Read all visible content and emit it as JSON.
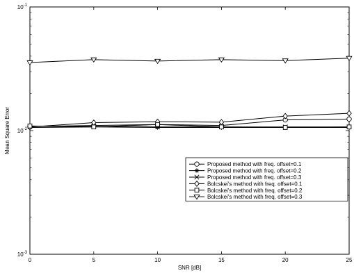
{
  "chart_data": {
    "type": "line",
    "xlabel": "SNR [dB]",
    "ylabel": "Mean Square Error",
    "xlim": [
      0,
      25
    ],
    "ylim": [
      0.001,
      0.1
    ],
    "yscale": "log",
    "x_ticks": [
      0,
      5,
      10,
      15,
      20,
      25
    ],
    "x_tick_labels": [
      "0",
      "5",
      "10",
      "15",
      "20",
      "25"
    ],
    "y_ticks": [
      0.001,
      0.01,
      0.1
    ],
    "y_tick_labels": [
      {
        "base": "10",
        "exp": "-3"
      },
      {
        "base": "10",
        "exp": "-2"
      },
      {
        "base": "10",
        "exp": "-1"
      }
    ],
    "grid": false,
    "legend_position": "lower-right",
    "series": [
      {
        "name": "Proposed method with freq. offset=0.1",
        "marker": "circle",
        "x": [
          0,
          5,
          10,
          15,
          20,
          25
        ],
        "y": [
          0.0108,
          0.011,
          0.0112,
          0.011,
          0.0122,
          0.0124
        ]
      },
      {
        "name": "Proposed method with freq. offset=0.2",
        "marker": "star",
        "x": [
          0,
          5,
          10,
          15,
          20,
          25
        ],
        "y": [
          0.0106,
          0.0107,
          0.0106,
          0.0106,
          0.0106,
          0.0106
        ]
      },
      {
        "name": "Proposed method with freq. offset=0.3",
        "marker": "x",
        "x": [
          0,
          5,
          10,
          15,
          20,
          25
        ],
        "y": [
          0.0109,
          0.0108,
          0.0107,
          0.0107,
          0.0107,
          0.0107
        ]
      },
      {
        "name": "Bolcskei's method with freq. offset=0.1",
        "marker": "diamond",
        "x": [
          0,
          5,
          10,
          15,
          20,
          25
        ],
        "y": [
          0.0107,
          0.0116,
          0.0118,
          0.0117,
          0.0131,
          0.0138
        ]
      },
      {
        "name": "Bolcskei's method with freq. offset=0.2",
        "marker": "square",
        "x": [
          0,
          5,
          10,
          15,
          20,
          25
        ],
        "y": [
          0.0109,
          0.0107,
          0.0112,
          0.0107,
          0.0106,
          0.0107
        ]
      },
      {
        "name": "Bolcskei's method with freq. offset=0.3",
        "marker": "triangle-down",
        "x": [
          0,
          5,
          10,
          15,
          20,
          25
        ],
        "y": [
          0.0355,
          0.0375,
          0.0365,
          0.0375,
          0.0368,
          0.0385
        ]
      }
    ]
  }
}
